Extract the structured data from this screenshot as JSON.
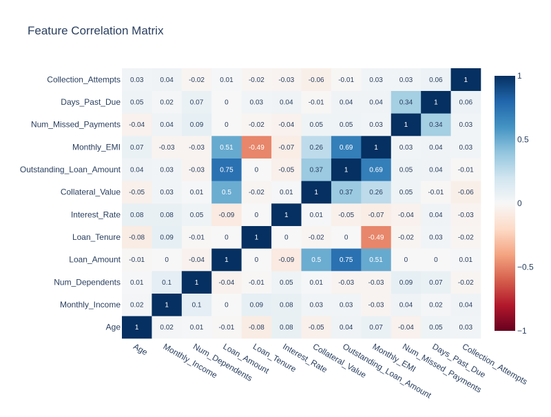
{
  "chart_data": {
    "type": "heatmap",
    "title": "Feature Correlation Matrix",
    "x_labels": [
      "Age",
      "Monthly_Income",
      "Num_Dependents",
      "Loan_Amount",
      "Loan_Tenure",
      "Interest_Rate",
      "Collateral_Value",
      "Outstanding_Loan_Amount",
      "Monthly_EMI",
      "Num_Missed_Payments",
      "Days_Past_Due",
      "Collection_Attempts"
    ],
    "y_labels": [
      "Age",
      "Monthly_Income",
      "Num_Dependents",
      "Loan_Amount",
      "Loan_Tenure",
      "Interest_Rate",
      "Collateral_Value",
      "Outstanding_Loan_Amount",
      "Monthly_EMI",
      "Num_Missed_Payments",
      "Days_Past_Due",
      "Collection_Attempts"
    ],
    "y_order": "bottom-to-top",
    "z": [
      [
        1,
        0.02,
        0.01,
        -0.01,
        -0.08,
        0.08,
        -0.05,
        0.04,
        0.07,
        -0.04,
        0.05,
        0.03
      ],
      [
        0.02,
        1,
        0.1,
        0,
        0.09,
        0.08,
        0.03,
        0.03,
        -0.03,
        0.04,
        0.02,
        0.04
      ],
      [
        0.01,
        0.1,
        1,
        -0.04,
        -0.01,
        0.05,
        0.01,
        -0.03,
        -0.03,
        0.09,
        0.07,
        -0.02
      ],
      [
        -0.01,
        0,
        -0.04,
        1,
        0,
        -0.09,
        0.5,
        0.75,
        0.51,
        0,
        0,
        0.01
      ],
      [
        -0.08,
        0.09,
        -0.01,
        0,
        1,
        0,
        -0.02,
        0,
        -0.49,
        -0.02,
        0.03,
        -0.02
      ],
      [
        0.08,
        0.08,
        0.05,
        -0.09,
        0,
        1,
        0.01,
        -0.05,
        -0.07,
        -0.04,
        0.04,
        -0.03
      ],
      [
        -0.05,
        0.03,
        0.01,
        0.5,
        -0.02,
        0.01,
        1,
        0.37,
        0.26,
        0.05,
        -0.01,
        -0.06
      ],
      [
        0.04,
        0.03,
        -0.03,
        0.75,
        0,
        -0.05,
        0.37,
        1,
        0.69,
        0.05,
        0.04,
        -0.01
      ],
      [
        0.07,
        -0.03,
        -0.03,
        0.51,
        -0.49,
        -0.07,
        0.26,
        0.69,
        1,
        0.03,
        0.04,
        0.03
      ],
      [
        -0.04,
        0.04,
        0.09,
        0,
        -0.02,
        -0.04,
        0.05,
        0.05,
        0.03,
        1,
        0.34,
        0.03
      ],
      [
        0.05,
        0.02,
        0.07,
        0,
        0.03,
        0.04,
        -0.01,
        0.04,
        0.04,
        0.34,
        1,
        0.06
      ],
      [
        0.03,
        0.04,
        -0.02,
        0.01,
        -0.02,
        -0.03,
        -0.06,
        -0.01,
        0.03,
        0.03,
        0.06,
        1
      ]
    ],
    "zrange": [
      -1,
      1
    ],
    "colorbar_ticks": [
      1,
      0.5,
      0,
      -0.5,
      -1
    ],
    "colorbar_tick_labels": [
      "1",
      "0.5",
      "0",
      "−0.5",
      "−1"
    ],
    "colorscale": [
      [
        0,
        "#67001f"
      ],
      [
        0.1,
        "#b2182b"
      ],
      [
        0.2,
        "#d6604d"
      ],
      [
        0.3,
        "#f4a582"
      ],
      [
        0.4,
        "#fddbc7"
      ],
      [
        0.5,
        "#f7f7f7"
      ],
      [
        0.6,
        "#d1e5f0"
      ],
      [
        0.7,
        "#92c5de"
      ],
      [
        0.8,
        "#4393c3"
      ],
      [
        0.9,
        "#2166ac"
      ],
      [
        1,
        "#053061"
      ]
    ],
    "text_color_dark": "#2a3f5f",
    "text_color_light": "#ffffff"
  }
}
